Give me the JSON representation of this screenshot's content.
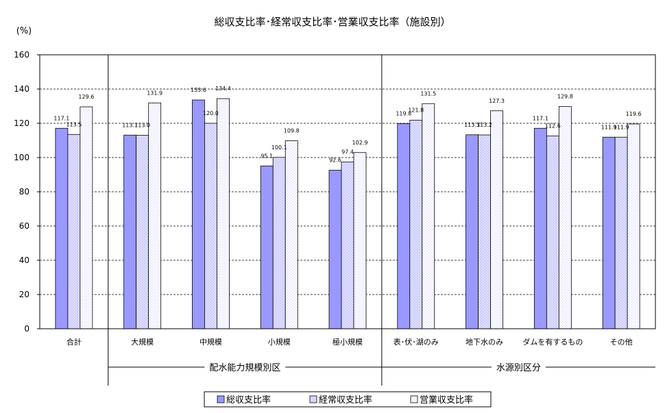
{
  "chart_data": {
    "type": "bar",
    "title": "総収支比率･経常収支比率･営業収支比率（施設別）",
    "ylabel": "(%)",
    "ylim": [
      0,
      160
    ],
    "ytick_step": 20,
    "categories": [
      "合計",
      "大規模",
      "中規模",
      "小規模",
      "極小規模",
      "表･伏･湖のみ",
      "地下水のみ",
      "ダムを有するもの",
      "その他"
    ],
    "groups": [
      {
        "label": "配水能力規模別区",
        "start": 1,
        "end": 4
      },
      {
        "label": "水源別区分",
        "start": 5,
        "end": 8
      }
    ],
    "series": [
      {
        "name": "総収支比率",
        "values": [
          117.1,
          113.1,
          133.6,
          95.1,
          92.6,
          119.8,
          113.3,
          117.1,
          111.9
        ]
      },
      {
        "name": "経常収支比率",
        "values": [
          113.5,
          113.0,
          120.0,
          100.1,
          97.4,
          121.8,
          113.2,
          112.6,
          111.9
        ]
      },
      {
        "name": "営業収支比率",
        "values": [
          129.6,
          131.9,
          134.4,
          109.8,
          102.9,
          131.5,
          127.3,
          129.8,
          119.6
        ]
      }
    ],
    "grid": true,
    "legend_position": "bottom"
  },
  "colors": {
    "series1": "#9999ff",
    "series2": "#ccccff",
    "series3": "#ffffff",
    "grid": "#000000"
  }
}
